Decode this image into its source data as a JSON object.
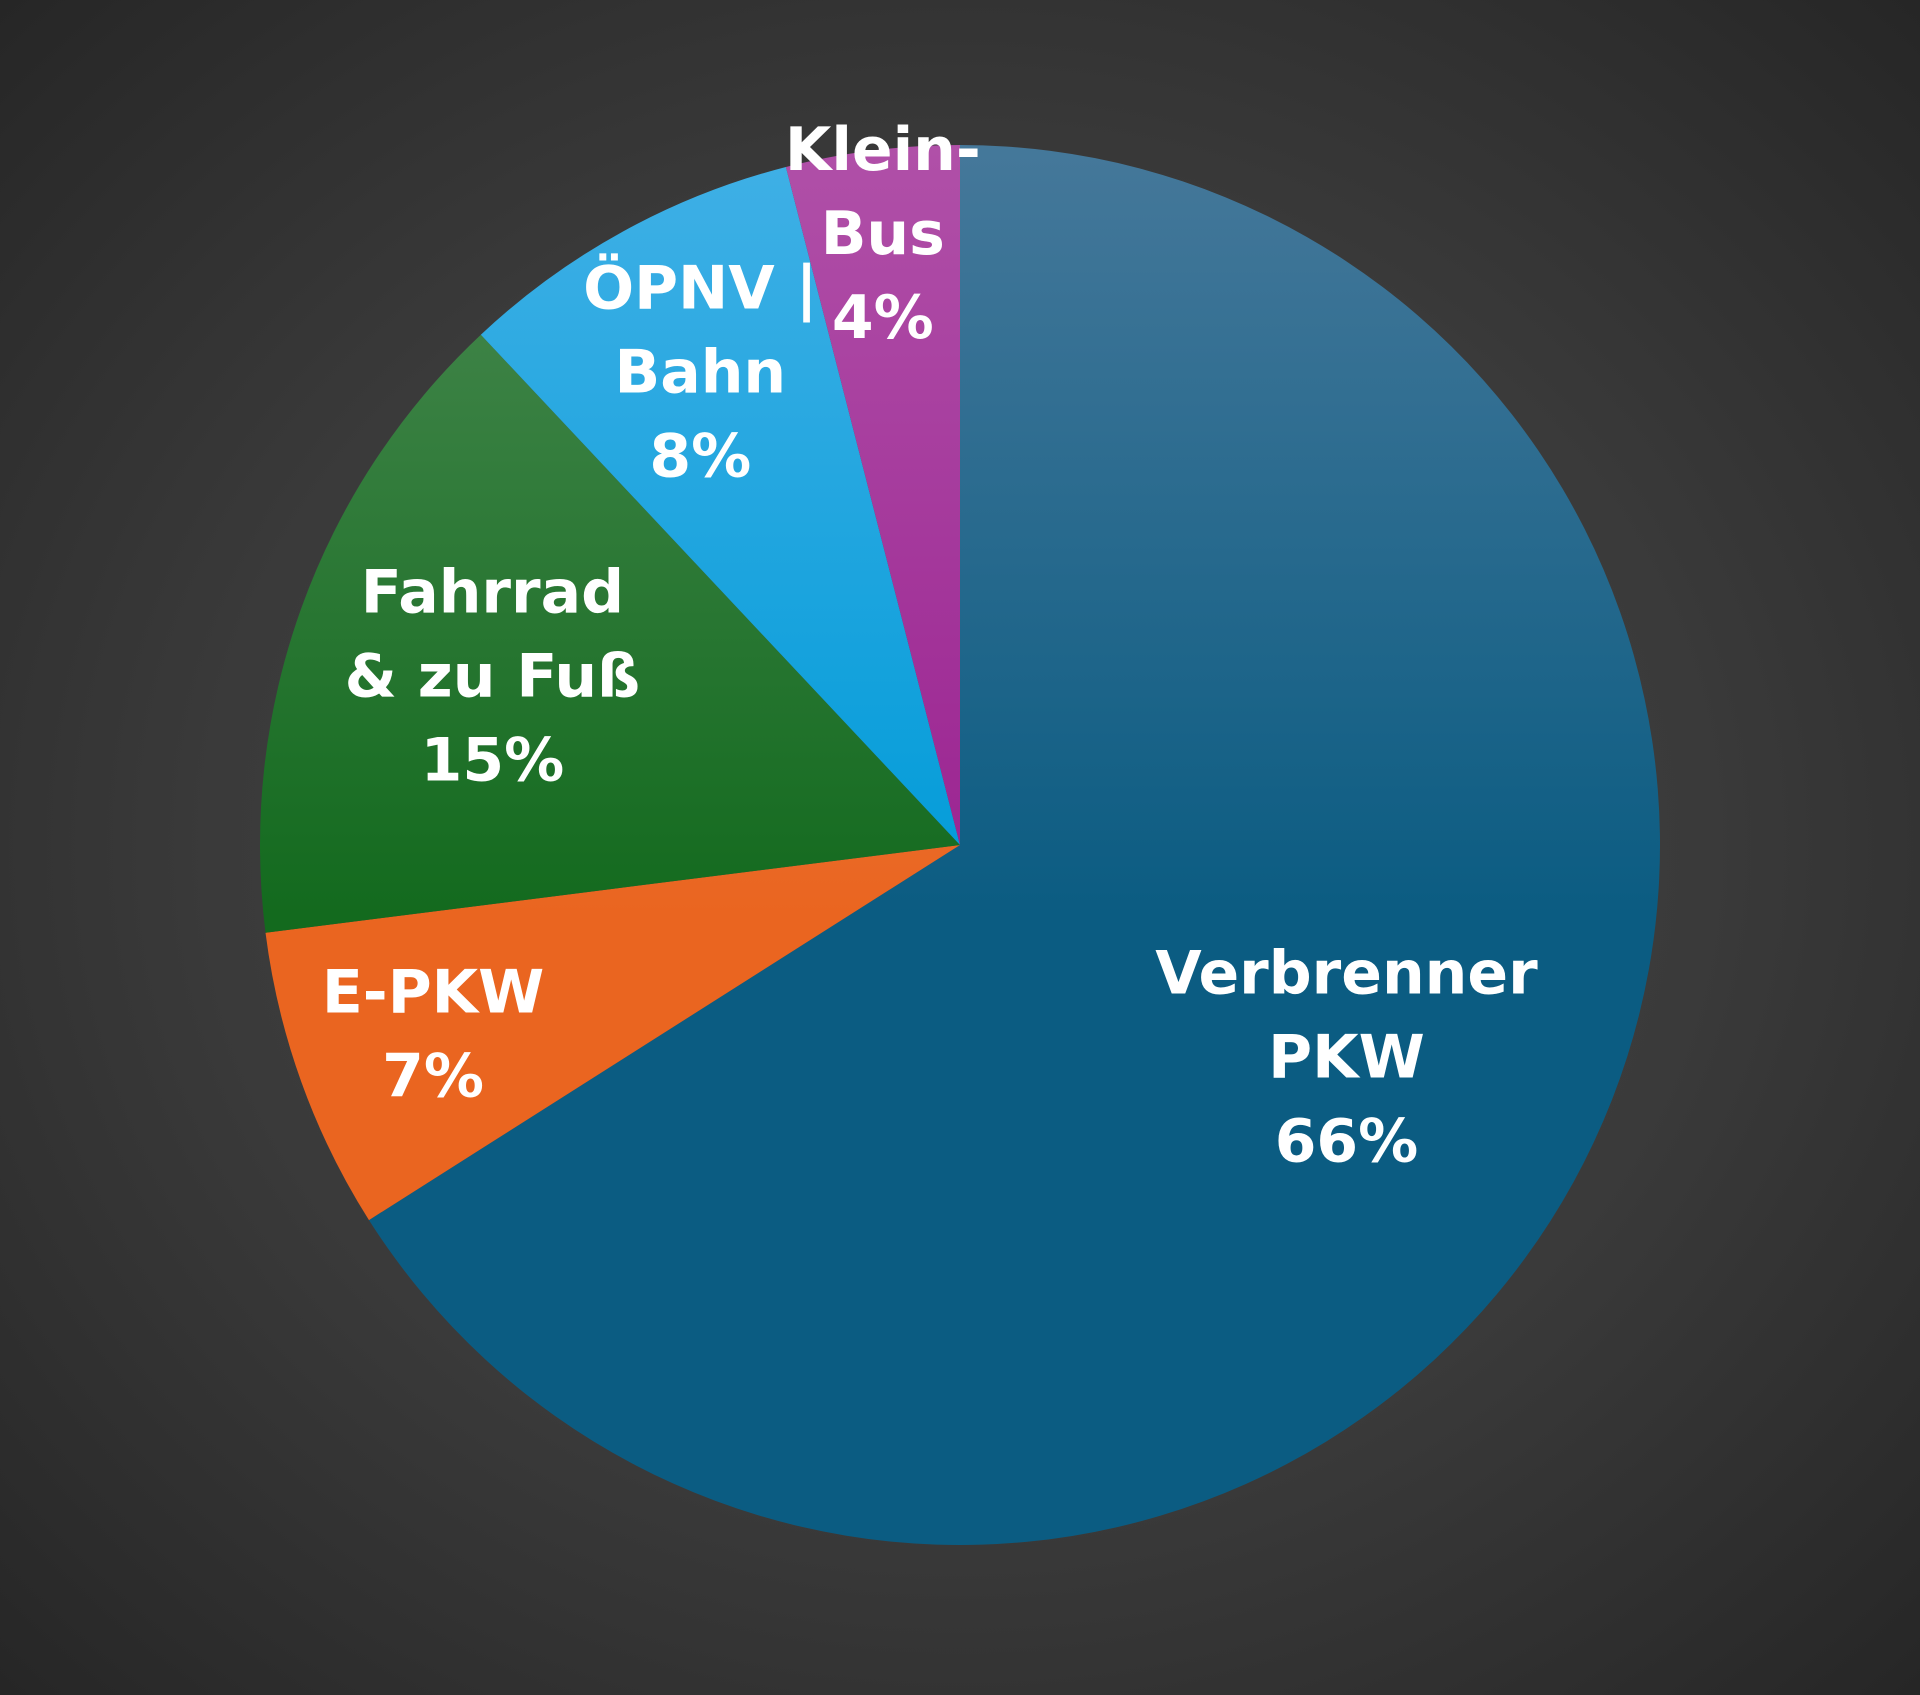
{
  "chart_data": {
    "type": "pie",
    "title": "",
    "start": "12 o'clock",
    "direction": "clockwise",
    "slices": [
      {
        "name": "Verbrenner PKW",
        "value": 66,
        "value_label": "66%",
        "label_lines": [
          "Verbrenner",
          "PKW",
          "66%"
        ],
        "color": "#0b5c82",
        "color_light": "#45789a"
      },
      {
        "name": "E-PKW",
        "value": 7,
        "value_label": "7%",
        "label_lines": [
          "E-PKW",
          "7%"
        ],
        "color": "#ea6520",
        "color_light": "#f08a5c"
      },
      {
        "name": "Fahrrad & zu Fuß",
        "value": 15,
        "value_label": "15%",
        "label_lines": [
          "Fahrrad",
          "& zu Fuß",
          "15%"
        ],
        "color": "#136a1e",
        "color_light": "#4a8a52"
      },
      {
        "name": "ÖPNV | Bahn",
        "value": 8,
        "value_label": "8%",
        "label_lines": [
          "ÖPNV |",
          "Bahn",
          "8%"
        ],
        "color": "#009bd8",
        "color_light": "#40b0e6"
      },
      {
        "name": "Klein-Bus",
        "value": 4,
        "value_label": "4%",
        "label_lines": [
          "Klein-",
          "Bus",
          "4%"
        ],
        "color": "#9a2290",
        "color_light": "#b050a8"
      }
    ],
    "legend": "none",
    "labels": "inside"
  }
}
